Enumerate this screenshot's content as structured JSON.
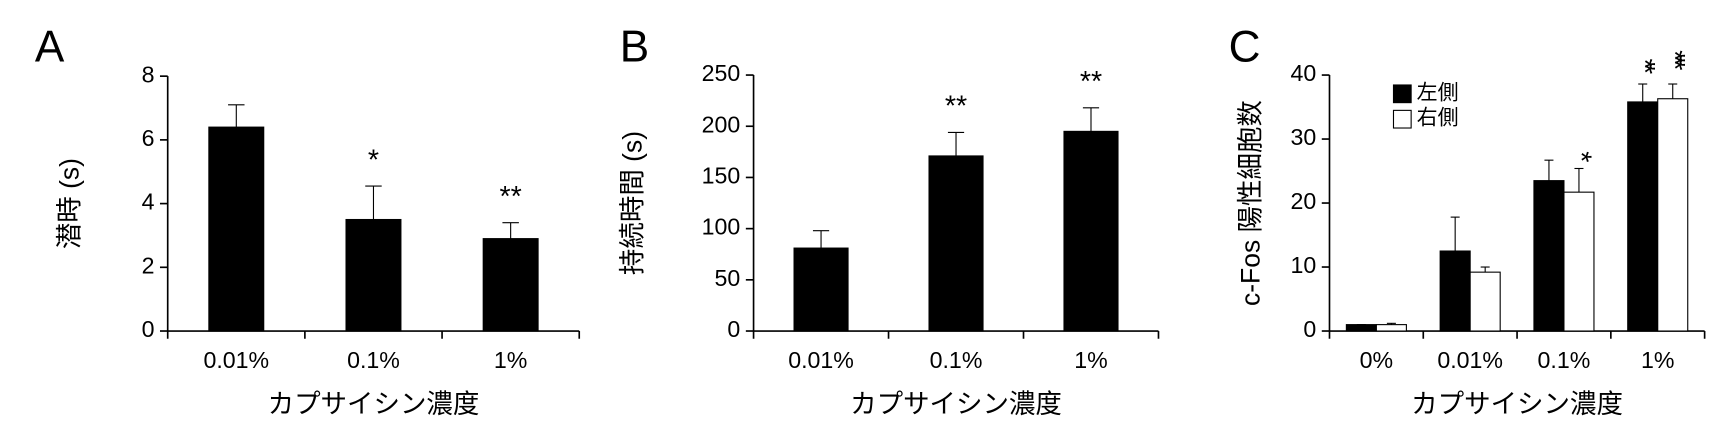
{
  "chart_data": [
    {
      "type": "bar",
      "panel_label": "A",
      "ylabel": "潜時 (s)",
      "xlabel": "カプサイシン濃度",
      "categories": [
        "0.01%",
        "0.1%",
        "1%"
      ],
      "values": [
        6.4,
        3.5,
        2.9
      ],
      "errors": [
        0.7,
        1.05,
        0.5
      ],
      "color": "#000000",
      "ylim": [
        0,
        8
      ],
      "yticks": [
        0,
        2,
        4,
        6,
        8
      ],
      "annotations": [
        {
          "category": "0.1%",
          "text": "*"
        },
        {
          "category": "1%",
          "text": "**"
        }
      ]
    },
    {
      "type": "bar",
      "panel_label": "B",
      "ylabel": "持続時間 (s)",
      "xlabel": "カプサイシン濃度",
      "categories": [
        "0.01%",
        "0.1%",
        "1%"
      ],
      "values": [
        81,
        171,
        195
      ],
      "errors": [
        17,
        23,
        23
      ],
      "color": "#000000",
      "ylim": [
        0,
        250
      ],
      "yticks": [
        0,
        50,
        100,
        150,
        200,
        250
      ],
      "annotations": [
        {
          "category": "0.1%",
          "text": "**"
        },
        {
          "category": "1%",
          "text": "**"
        }
      ]
    },
    {
      "type": "bar",
      "panel_label": "C",
      "ylabel": "c-Fos 陽性細胞数",
      "xlabel": "カプサイシン濃度",
      "categories": [
        "0%",
        "0.01%",
        "0.1%",
        "1%"
      ],
      "series": [
        {
          "name": "左側",
          "color": "#000000",
          "values": [
            1,
            12.5,
            23.5,
            35.8
          ],
          "errors": [
            0,
            5.3,
            3.2,
            2.8
          ]
        },
        {
          "name": "右側",
          "color": "#ffffff",
          "values": [
            1,
            9.2,
            21.7,
            36.3
          ],
          "errors": [
            0.2,
            0.8,
            3.7,
            2.3
          ]
        }
      ],
      "ylim": [
        0,
        40
      ],
      "yticks": [
        0,
        10,
        20,
        30,
        40
      ],
      "legend": "upper left",
      "annotation_orientation": "vertical",
      "annotations": [
        {
          "category": "0.1%",
          "series": "右側",
          "text": "*"
        },
        {
          "category": "1%",
          "series": "左側",
          "text": "**"
        },
        {
          "category": "1%",
          "series": "右側",
          "text": "***"
        }
      ]
    }
  ]
}
